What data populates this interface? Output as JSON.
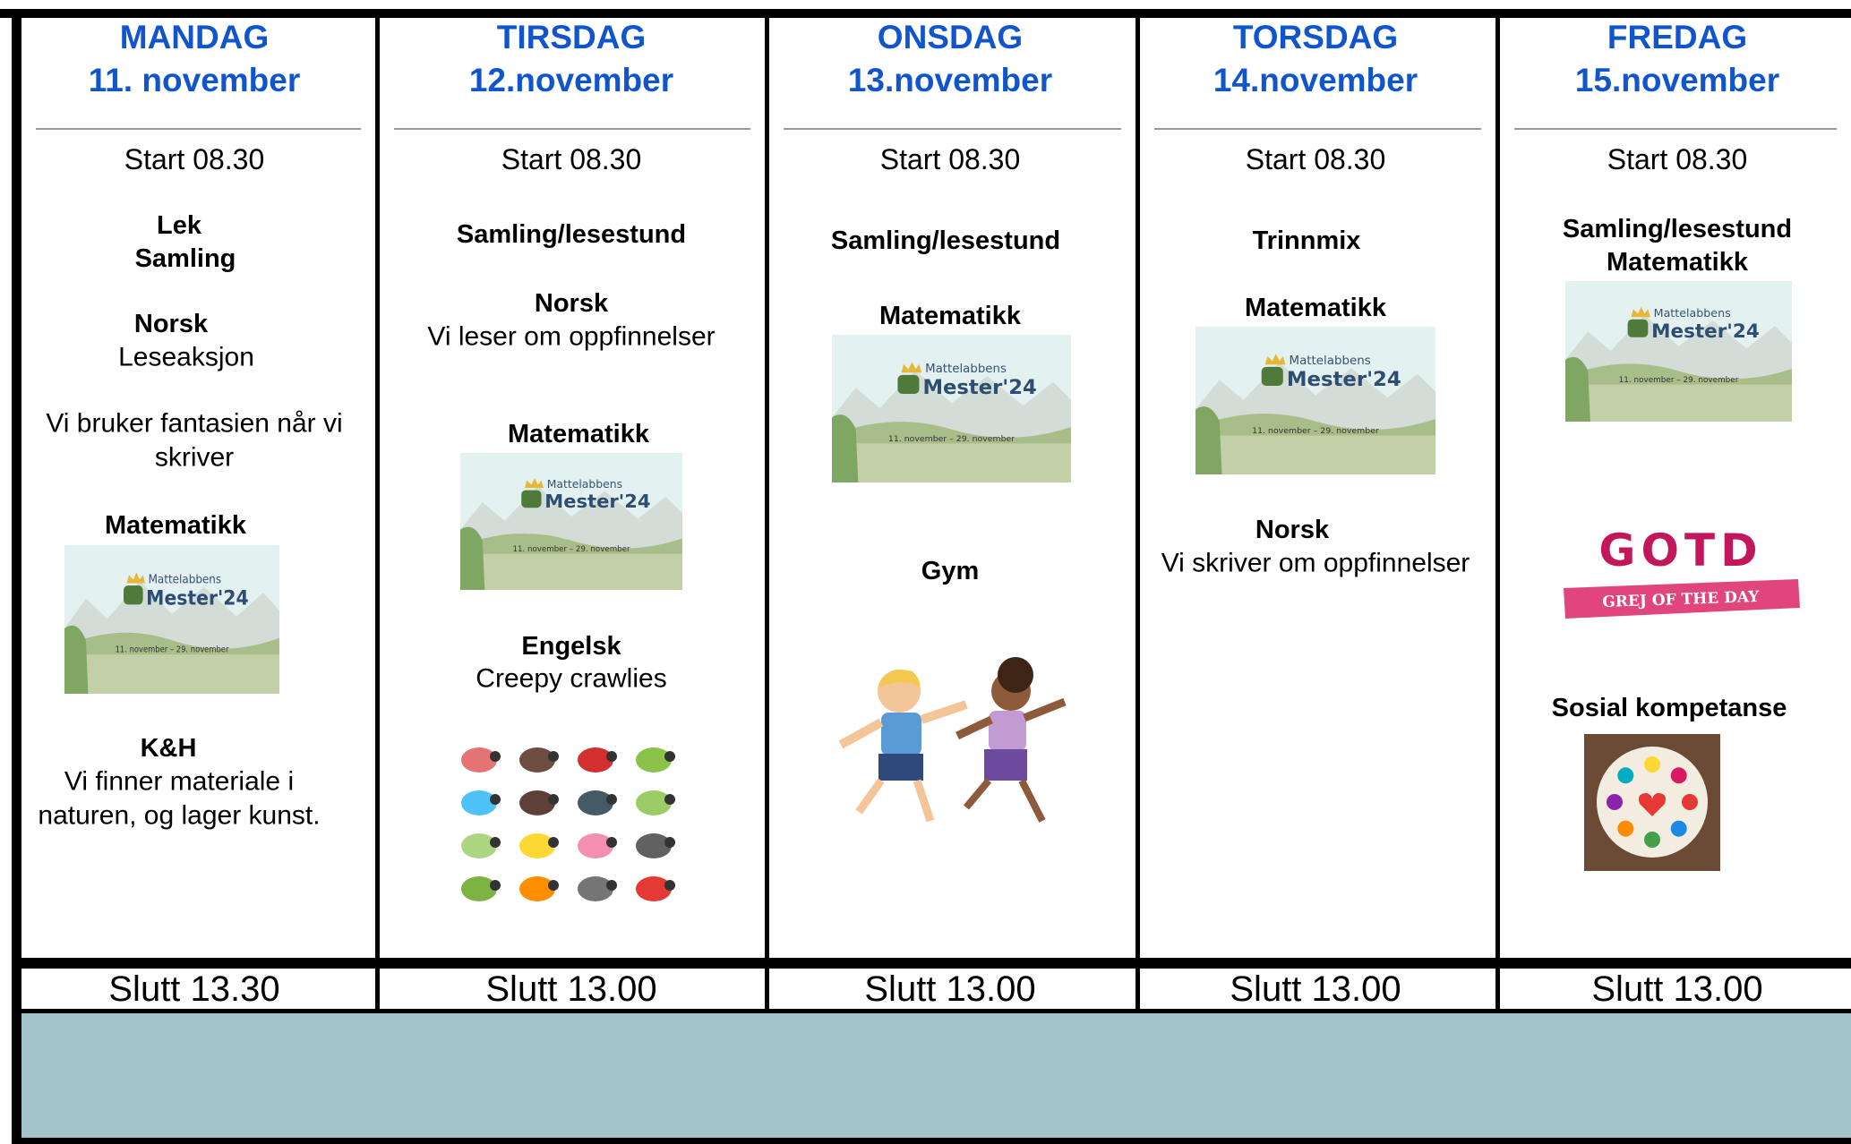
{
  "days": [
    {
      "day": "MANDAG",
      "date": "11. november",
      "start": "Start 08.30",
      "items": [
        "Lek",
        "Samling",
        "Norsk",
        "Leseaksjon",
        "Vi bruker fantasien når vi skriver",
        "Matematikk",
        "K&H",
        "Vi finner materiale i naturen, og lager kunst."
      ],
      "end": "Slutt 13.30"
    },
    {
      "day": "TIRSDAG",
      "date": "12.november",
      "start": "Start 08.30",
      "items": [
        "Samling/lesestund",
        "Norsk",
        "Vi leser om oppfinnelser",
        "Matematikk",
        "Engelsk",
        "Creepy crawlies"
      ],
      "end": "Slutt 13.00"
    },
    {
      "day": "ONSDAG",
      "date": "13.november",
      "start": "Start 08.30",
      "items": [
        "Samling/lesestund",
        "Matematikk",
        "Gym"
      ],
      "end": "Slutt 13.00"
    },
    {
      "day": "TORSDAG",
      "date": "14.november",
      "start": "Start 08.30",
      "items": [
        "Trinnmix",
        "Matematikk",
        "Norsk",
        "Vi skriver om oppfinnelser"
      ],
      "end": "Slutt 13.00"
    },
    {
      "day": "FREDAG",
      "date": "15.november",
      "start": "Start 08.30",
      "items": [
        "Samling/lesestund",
        "Matematikk",
        "Sosial kompetanse"
      ],
      "end": "Slutt 13.00"
    }
  ],
  "banner": {
    "line1": "Mattelabbens",
    "line2": "Mester'24",
    "dates": "11. november – 29. november"
  },
  "gotd": {
    "logo": "GOTD",
    "caption": "GREJ OF THE DAY"
  }
}
